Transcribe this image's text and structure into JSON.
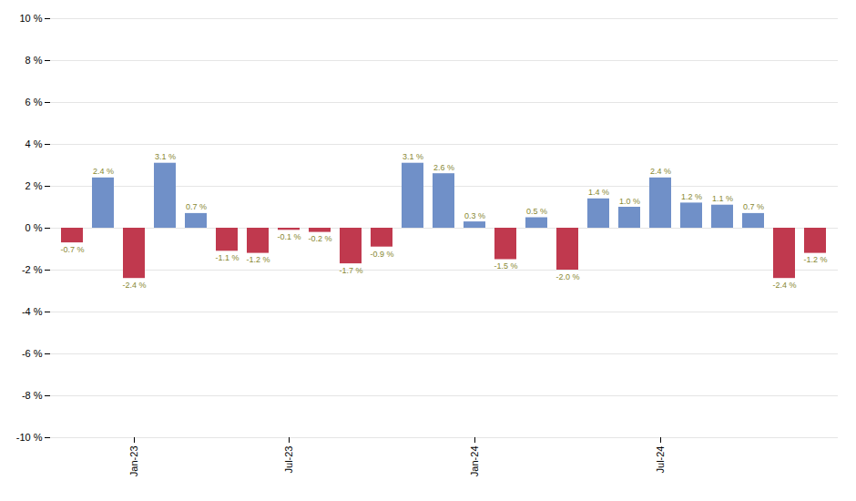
{
  "chart_data": {
    "type": "bar",
    "categories": [
      null,
      null,
      "Jan-23",
      null,
      null,
      null,
      null,
      "Jul-23",
      null,
      null,
      null,
      null,
      null,
      "Jan-24",
      null,
      null,
      null,
      null,
      null,
      "Jul-24",
      null,
      null,
      null,
      null,
      null
    ],
    "values": [
      -0.7,
      2.4,
      -2.4,
      3.1,
      0.7,
      -1.1,
      -1.2,
      -0.1,
      -0.2,
      -1.7,
      -0.9,
      3.1,
      2.6,
      0.3,
      -1.5,
      0.5,
      -2.0,
      1.4,
      1.0,
      2.4,
      1.2,
      1.1,
      0.7,
      -2.4,
      -1.2
    ],
    "value_labels": [
      "-0.7 %",
      "2.4 %",
      "-2.4 %",
      "3.1 %",
      "0.7 %",
      "-1.1 %",
      "-1.2 %",
      "-0.1 %",
      "-0.2 %",
      "-1.7 %",
      "-0.9 %",
      "3.1 %",
      "2.6 %",
      "0.3 %",
      "-1.5 %",
      "0.5 %",
      "-2.0 %",
      "1.4 %",
      "1.0 %",
      "2.4 %",
      "1.2 %",
      "1.1 %",
      "0.7 %",
      "-2.4 %",
      "-1.2 %"
    ],
    "colors": [
      "#c0394e",
      "#7090c8",
      "#c0394e",
      "#7090c8",
      "#7090c8",
      "#c0394e",
      "#c0394e",
      "#c0394e",
      "#c0394e",
      "#c0394e",
      "#c0394e",
      "#7090c8",
      "#7090c8",
      "#7090c8",
      "#c0394e",
      "#7090c8",
      "#c0394e",
      "#7090c8",
      "#7090c8",
      "#7090c8",
      "#7090c8",
      "#7090c8",
      "#7090c8",
      "#c0394e",
      "#c0394e"
    ],
    "ylim": [
      -10,
      10
    ],
    "yticks": [
      {
        "value": -10,
        "label": "-10 %"
      },
      {
        "value": -8,
        "label": "-8 %"
      },
      {
        "value": -6,
        "label": "-6 %"
      },
      {
        "value": -4,
        "label": "-4 %"
      },
      {
        "value": -2,
        "label": "-2 %"
      },
      {
        "value": 0,
        "label": "0 %"
      },
      {
        "value": 2,
        "label": "2 %"
      },
      {
        "value": 4,
        "label": "4 %"
      },
      {
        "value": 6,
        "label": "6 %"
      },
      {
        "value": 8,
        "label": "8 %"
      },
      {
        "value": 10,
        "label": "10 %"
      }
    ],
    "grid": true,
    "data_labels": true
  }
}
